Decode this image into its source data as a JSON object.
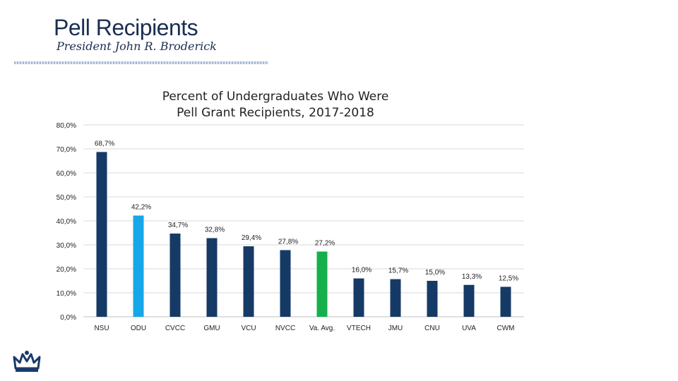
{
  "header": {
    "title": "Pell Recipients",
    "subtitle": "President John R. Broderick"
  },
  "logo": {
    "icon": "crown-icon",
    "color": "#1a3a6b"
  },
  "colors": {
    "default_bar": "#163a66",
    "odu_bar": "#15a7e8",
    "avg_bar": "#15b04b",
    "grid": "#d9d9d9",
    "text": "#222222"
  },
  "chart_data": {
    "type": "bar",
    "title": "Percent of Undergraduates Who Were Pell Grant Recipients, 2017-2018",
    "title_lines": [
      "Percent of Undergraduates Who Were",
      "Pell Grant Recipients, 2017-2018"
    ],
    "categories": [
      "NSU",
      "ODU",
      "CVCC",
      "GMU",
      "VCU",
      "NVCC",
      "Va. Avg.",
      "VTECH",
      "JMU",
      "CNU",
      "UVA",
      "CWM"
    ],
    "values": [
      68.7,
      42.2,
      34.7,
      32.8,
      29.4,
      27.8,
      27.2,
      16.0,
      15.7,
      15.0,
      13.3,
      12.5
    ],
    "value_labels": [
      "68,7%",
      "42,2%",
      "34,7%",
      "32,8%",
      "29,4%",
      "27,8%",
      "27,2%",
      "16,0%",
      "15,7%",
      "15,0%",
      "13,3%",
      "12,5%"
    ],
    "bar_color_keys": [
      "default_bar",
      "odu_bar",
      "default_bar",
      "default_bar",
      "default_bar",
      "default_bar",
      "avg_bar",
      "default_bar",
      "default_bar",
      "default_bar",
      "default_bar",
      "default_bar"
    ],
    "yticks": [
      0,
      10,
      20,
      30,
      40,
      50,
      60,
      70,
      80
    ],
    "ytick_labels": [
      "0,0%",
      "10,0%",
      "20,0%",
      "30,0%",
      "40,0%",
      "50,0%",
      "60,0%",
      "70,0%",
      "80,0%"
    ],
    "ylim": [
      0,
      80
    ],
    "xlabel": "",
    "ylabel": "",
    "grid": true,
    "legend": "none"
  }
}
